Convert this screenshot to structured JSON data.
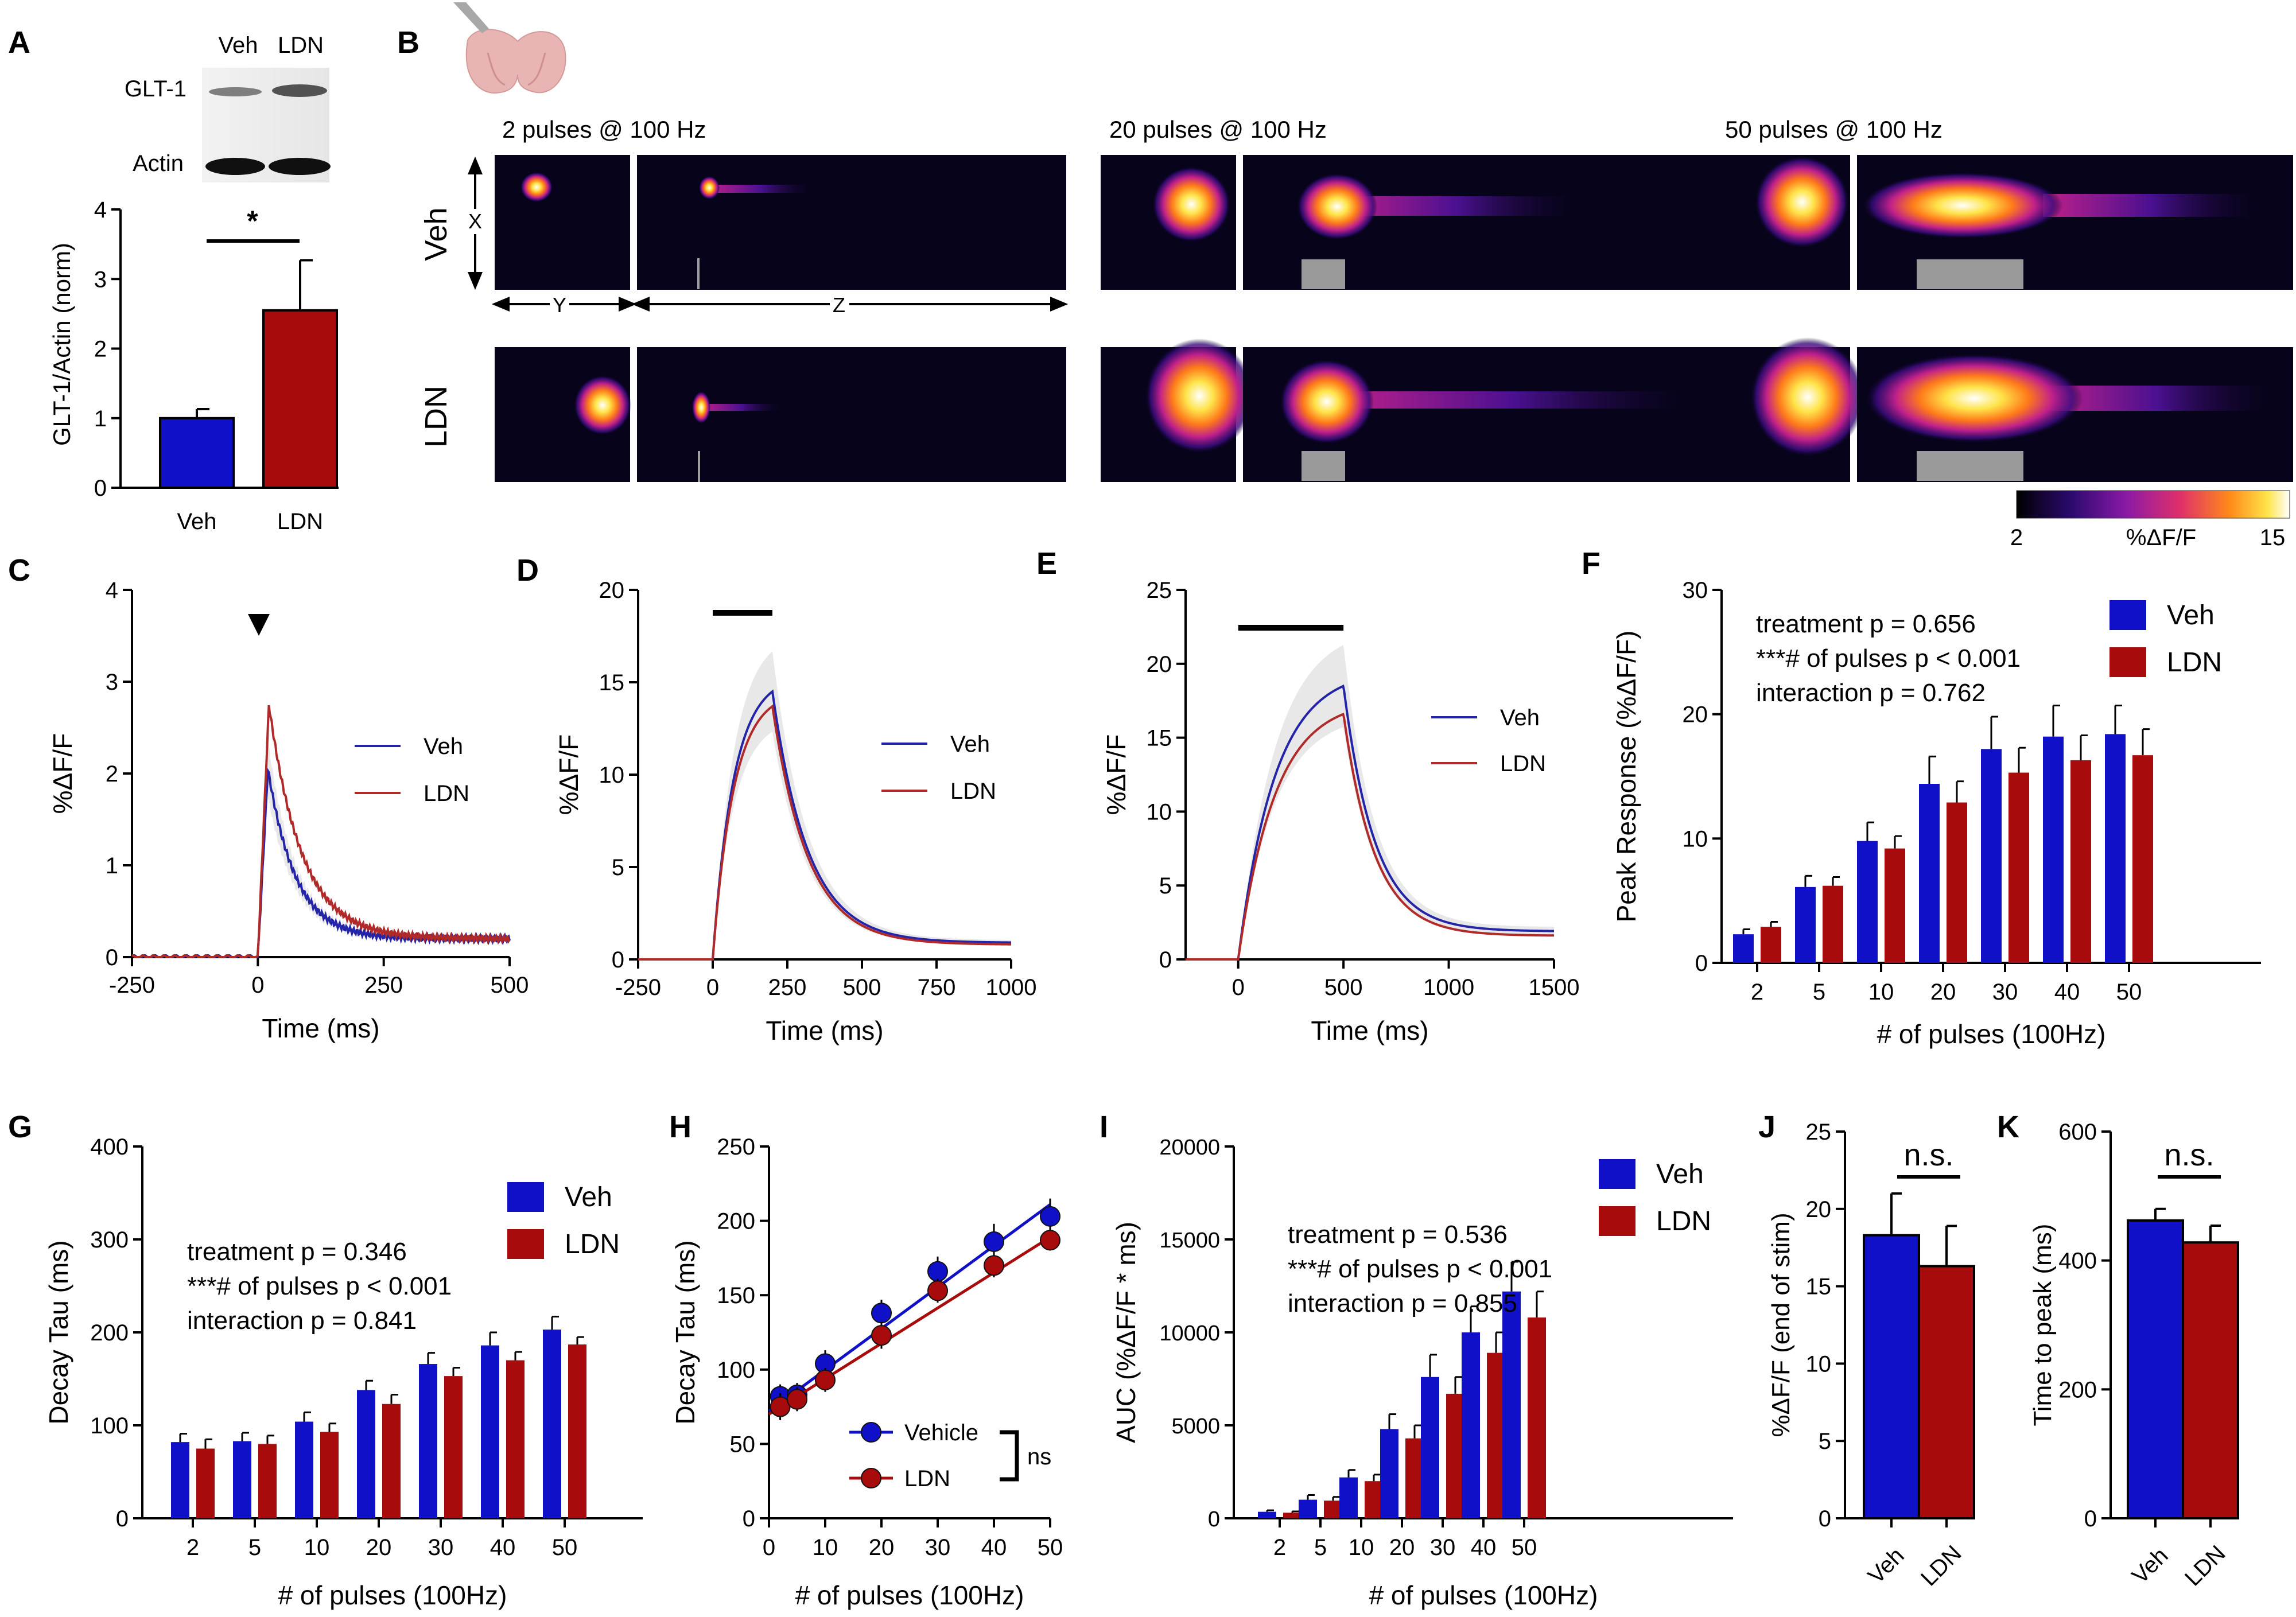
{
  "colors": {
    "veh": "#1010c8",
    "ldn": "#a80b0b",
    "veh_line": "#2424a8",
    "ldn_line": "#b02a2a",
    "bar_gray": "#8a8a8a"
  },
  "panel_labels": [
    "A",
    "B",
    "C",
    "D",
    "E",
    "F",
    "G",
    "H",
    "I",
    "J",
    "K"
  ],
  "panelA": {
    "blot": {
      "lanes": [
        "Veh",
        "LDN"
      ],
      "rows": [
        "GLT-1",
        "Actin"
      ]
    },
    "ylabel": "GLT-1/Actin (norm)",
    "significance": "*",
    "chart_data": {
      "type": "bar",
      "categories": [
        "Veh",
        "LDN"
      ],
      "values": [
        1.0,
        2.55
      ],
      "errors": [
        0.13,
        0.72
      ],
      "ylim": [
        0,
        4
      ],
      "yticks": [
        "0",
        "1",
        "2",
        "3",
        "4"
      ],
      "ylabel": "GLT-1/Actin (norm)"
    }
  },
  "panelB": {
    "conditions": [
      "2 pulses @ 100 Hz",
      "20 pulses @ 100 Hz",
      "50 pulses @ 100 Hz"
    ],
    "rows": [
      "Veh",
      "LDN"
    ],
    "axes": {
      "x": "X",
      "y": "Y",
      "z": "Z"
    },
    "colorbar": {
      "min": "2",
      "max": "15",
      "label": "%ΔF/F"
    },
    "icon": "brain-slice-icon"
  },
  "panelC": {
    "chart_data": {
      "type": "line",
      "xlabel": "Time (ms)",
      "ylabel": "%ΔF/F",
      "xlim": [
        -250,
        500
      ],
      "ylim": [
        0,
        4
      ],
      "xticks": [
        "-250",
        "0",
        "250",
        "500"
      ],
      "yticks": [
        "0",
        "1",
        "2",
        "3",
        "4"
      ],
      "series": [
        {
          "name": "Veh",
          "peak": 2.05,
          "peak_time": 20,
          "baseline_end": 0.2,
          "tau": 55
        },
        {
          "name": "LDN",
          "peak": 2.75,
          "peak_time": 22,
          "baseline_end": 0.2,
          "tau": 65
        }
      ],
      "stimulus": "arrowhead at 0 ms"
    }
  },
  "panelD": {
    "chart_data": {
      "type": "line",
      "xlabel": "Time (ms)",
      "ylabel": "%ΔF/F",
      "xlim": [
        -250,
        1000
      ],
      "ylim": [
        0,
        20
      ],
      "xticks": [
        "-250",
        "0",
        "250",
        "500",
        "750",
        "1000"
      ],
      "yticks": [
        "0",
        "5",
        "10",
        "15",
        "20"
      ],
      "stim_window": [
        0,
        200
      ],
      "series": [
        {
          "name": "Veh",
          "peak": 14.5,
          "peak_time": 200,
          "end": 0.9
        },
        {
          "name": "LDN",
          "peak": 13.7,
          "peak_time": 200,
          "end": 0.8
        }
      ]
    }
  },
  "panelE": {
    "chart_data": {
      "type": "line",
      "xlabel": "Time (ms)",
      "ylabel": "%ΔF/F",
      "xlim": [
        -250,
        1500
      ],
      "ylim": [
        0,
        25
      ],
      "xticks": [
        "0",
        "500",
        "1000",
        "1500"
      ],
      "yticks": [
        "0",
        "5",
        "10",
        "15",
        "20",
        "25"
      ],
      "stim_window": [
        0,
        500
      ],
      "series": [
        {
          "name": "Veh",
          "peak": 18.5,
          "peak_time": 490,
          "end": 1.9
        },
        {
          "name": "LDN",
          "peak": 16.6,
          "peak_time": 490,
          "end": 1.6
        }
      ]
    }
  },
  "panelF": {
    "stats": [
      "treatment p = 0.656",
      "***# of pulses p < 0.001",
      "interaction p = 0.762"
    ],
    "chart_data": {
      "type": "bar",
      "categories": [
        "2",
        "5",
        "10",
        "20",
        "30",
        "40",
        "50"
      ],
      "xlabel": "# of pulses (100Hz)",
      "ylabel": "Peak Response (%ΔF/F)",
      "ylim": [
        0,
        30
      ],
      "yticks": [
        "0",
        "10",
        "20",
        "30"
      ],
      "series": [
        {
          "name": "Veh",
          "values": [
            2.3,
            6.1,
            9.8,
            14.4,
            17.2,
            18.2,
            18.4
          ],
          "errors": [
            0.4,
            0.9,
            1.5,
            2.2,
            2.6,
            2.5,
            2.3
          ]
        },
        {
          "name": "LDN",
          "values": [
            2.9,
            6.2,
            9.2,
            12.9,
            15.3,
            16.3,
            16.7
          ],
          "errors": [
            0.4,
            0.7,
            1.0,
            1.7,
            2.0,
            2.0,
            2.1
          ]
        }
      ]
    }
  },
  "panelG": {
    "stats": [
      "treatment p = 0.346",
      "***# of pulses p < 0.001",
      "interaction p = 0.841"
    ],
    "chart_data": {
      "type": "bar",
      "categories": [
        "2",
        "5",
        "10",
        "20",
        "30",
        "40",
        "50"
      ],
      "xlabel": "# of pulses (100Hz)",
      "ylabel": "Decay Tau (ms)",
      "ylim": [
        0,
        400
      ],
      "yticks": [
        "0",
        "100",
        "200",
        "300",
        "400"
      ],
      "series": [
        {
          "name": "Veh",
          "values": [
            82,
            83,
            104,
            138,
            166,
            186,
            203
          ],
          "errors": [
            9,
            9,
            10,
            10,
            12,
            14,
            14
          ]
        },
        {
          "name": "LDN",
          "values": [
            75,
            80,
            93,
            123,
            153,
            170,
            187
          ],
          "errors": [
            10,
            9,
            9,
            10,
            9,
            9,
            8
          ]
        }
      ]
    }
  },
  "panelH": {
    "ns_label": "ns",
    "chart_data": {
      "type": "scatter",
      "xlabel": "# of pulses (100Hz)",
      "ylabel": "Decay Tau (ms)",
      "xlim": [
        0,
        50
      ],
      "ylim": [
        0,
        250
      ],
      "xticks": [
        "0",
        "10",
        "20",
        "30",
        "40",
        "50"
      ],
      "yticks": [
        "0",
        "50",
        "100",
        "150",
        "200",
        "250"
      ],
      "x": [
        2,
        5,
        10,
        20,
        30,
        40,
        50
      ],
      "series": [
        {
          "name": "Vehicle",
          "values": [
            82,
            83,
            104,
            138,
            166,
            186,
            203
          ],
          "errors": [
            8,
            8,
            9,
            9,
            10,
            12,
            12
          ],
          "fit": [
            [
              0,
              72
            ],
            [
              50,
              211
            ]
          ]
        },
        {
          "name": "LDN",
          "values": [
            75,
            80,
            93,
            123,
            153,
            170,
            187
          ],
          "errors": [
            9,
            8,
            8,
            9,
            8,
            8,
            7
          ],
          "fit": [
            [
              0,
              70
            ],
            [
              50,
              189
            ]
          ]
        }
      ]
    }
  },
  "panelI": {
    "stats": [
      "treatment p = 0.536",
      "***# of pulses p < 0.001",
      "interaction p = 0.855"
    ],
    "chart_data": {
      "type": "bar",
      "categories": [
        "2",
        "5",
        "10",
        "20",
        "30",
        "40",
        "50"
      ],
      "xlabel": "# of pulses (100Hz)",
      "ylabel": "AUC (%ΔF/F * ms)",
      "ylim": [
        0,
        20000
      ],
      "yticks": [
        "0",
        "5000",
        "10000",
        "15000",
        "20000"
      ],
      "series": [
        {
          "name": "Veh",
          "values": [
            350,
            1000,
            2200,
            4800,
            7600,
            10000,
            12200
          ],
          "errors": [
            80,
            250,
            400,
            800,
            1200,
            1400,
            1600
          ]
        },
        {
          "name": "LDN",
          "values": [
            300,
            950,
            2000,
            4300,
            6700,
            8900,
            10800
          ],
          "errors": [
            70,
            200,
            350,
            700,
            900,
            1100,
            1400
          ]
        }
      ]
    }
  },
  "panelJ": {
    "significance": "n.s.",
    "chart_data": {
      "type": "bar",
      "categories": [
        "Veh",
        "LDN"
      ],
      "values": [
        18.3,
        16.3
      ],
      "errors": [
        2.7,
        2.6
      ],
      "ylabel": "%ΔF/F (end of stim)",
      "ylim": [
        0,
        25
      ],
      "yticks": [
        "0",
        "5",
        "10",
        "15",
        "20",
        "25"
      ]
    }
  },
  "panelK": {
    "significance": "n.s.",
    "chart_data": {
      "type": "bar",
      "categories": [
        "Veh",
        "LDN"
      ],
      "values": [
        462,
        428
      ],
      "errors": [
        18,
        26
      ],
      "ylabel": "Time to peak (ms)",
      "ylim": [
        0,
        600
      ],
      "yticks": [
        "0",
        "200",
        "400",
        "600"
      ]
    }
  }
}
